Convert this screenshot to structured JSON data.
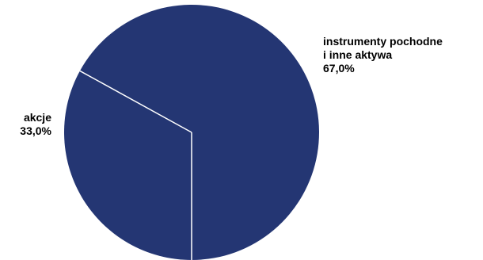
{
  "chart_data": {
    "type": "pie",
    "slices": [
      {
        "label_lines": [
          "instrumenty pochodne",
          "i inne aktywa"
        ],
        "value_text": "67,0%",
        "value": 67.0,
        "color": "#243673"
      },
      {
        "label_lines": [
          "akcje"
        ],
        "value_text": "33,0%",
        "value": 33.0,
        "color": "#243673"
      }
    ],
    "separator_color": "#ffffff",
    "start_angle": "bottom (6 o'clock), clockwise for the 33,0% slice"
  }
}
